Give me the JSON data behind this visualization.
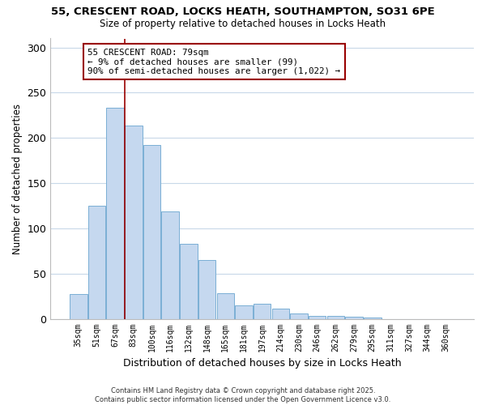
{
  "title": "55, CRESCENT ROAD, LOCKS HEATH, SOUTHAMPTON, SO31 6PE",
  "subtitle": "Size of property relative to detached houses in Locks Heath",
  "xlabel": "Distribution of detached houses by size in Locks Heath",
  "ylabel": "Number of detached properties",
  "bar_color": "#c5d8ef",
  "bar_edge_color": "#7aafd4",
  "background_color": "#ffffff",
  "grid_color": "#c8d8e8",
  "categories": [
    "35sqm",
    "51sqm",
    "67sqm",
    "83sqm",
    "100sqm",
    "116sqm",
    "132sqm",
    "148sqm",
    "165sqm",
    "181sqm",
    "197sqm",
    "214sqm",
    "230sqm",
    "246sqm",
    "262sqm",
    "279sqm",
    "295sqm",
    "311sqm",
    "327sqm",
    "344sqm",
    "360sqm"
  ],
  "values": [
    27,
    125,
    233,
    214,
    192,
    119,
    83,
    65,
    28,
    15,
    17,
    11,
    6,
    3,
    3,
    2,
    1,
    0,
    0,
    0,
    0
  ],
  "ylim": [
    0,
    310
  ],
  "yticks": [
    0,
    50,
    100,
    150,
    200,
    250,
    300
  ],
  "annotation_line1": "55 CRESCENT ROAD: 79sqm",
  "annotation_line2": "← 9% of detached houses are smaller (99)",
  "annotation_line3": "90% of semi-detached houses are larger (1,022) →",
  "vline_color": "#990000",
  "footer_line1": "Contains HM Land Registry data © Crown copyright and database right 2025.",
  "footer_line2": "Contains public sector information licensed under the Open Government Licence v3.0."
}
